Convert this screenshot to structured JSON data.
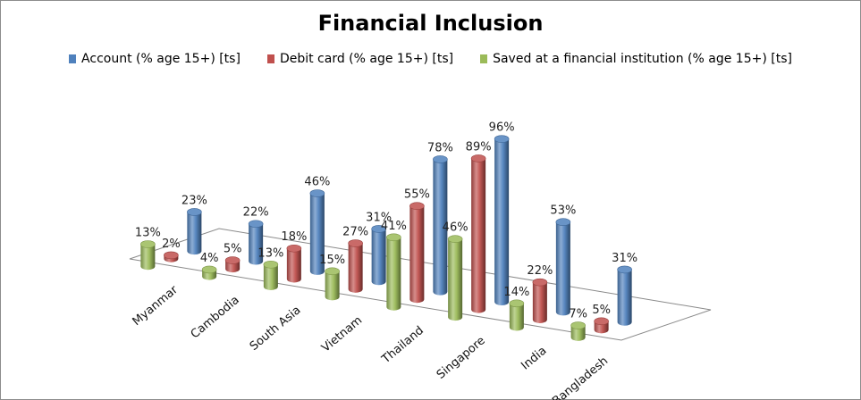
{
  "chart_data": {
    "type": "bar",
    "title": "Financial Inclusion",
    "categories": [
      "Myanmar",
      "Cambodia",
      "South Asia",
      "Vietnam",
      "Thailand",
      "Singapore",
      "India",
      "Bangladesh"
    ],
    "series": [
      {
        "name": "Account (% age 15+) [ts]",
        "color": "#4f81bd",
        "values": [
          23,
          22,
          46,
          31,
          78,
          96,
          53,
          31
        ],
        "labels": [
          "23%",
          "22%",
          "46%",
          "31%",
          "78%",
          "96%",
          "53%",
          "31%"
        ]
      },
      {
        "name": "Debit card (% age 15+) [ts]",
        "color": "#c0504d",
        "values": [
          2,
          5,
          18,
          27,
          55,
          89,
          22,
          5
        ],
        "labels": [
          "2%",
          "5%",
          "18%",
          "27%",
          "55%",
          "89%",
          "22%",
          "5%"
        ]
      },
      {
        "name": "Saved at a financial institution (% age 15+) [ts]",
        "color": "#9bbb59",
        "values": [
          13,
          4,
          13,
          15,
          41,
          46,
          14,
          7
        ],
        "labels": [
          "13%",
          "4%",
          "13%",
          "15%",
          "41%",
          "46%",
          "14%",
          "7%"
        ]
      }
    ],
    "ylim": [
      0,
      100
    ],
    "grid": false,
    "legend_position": "top"
  }
}
